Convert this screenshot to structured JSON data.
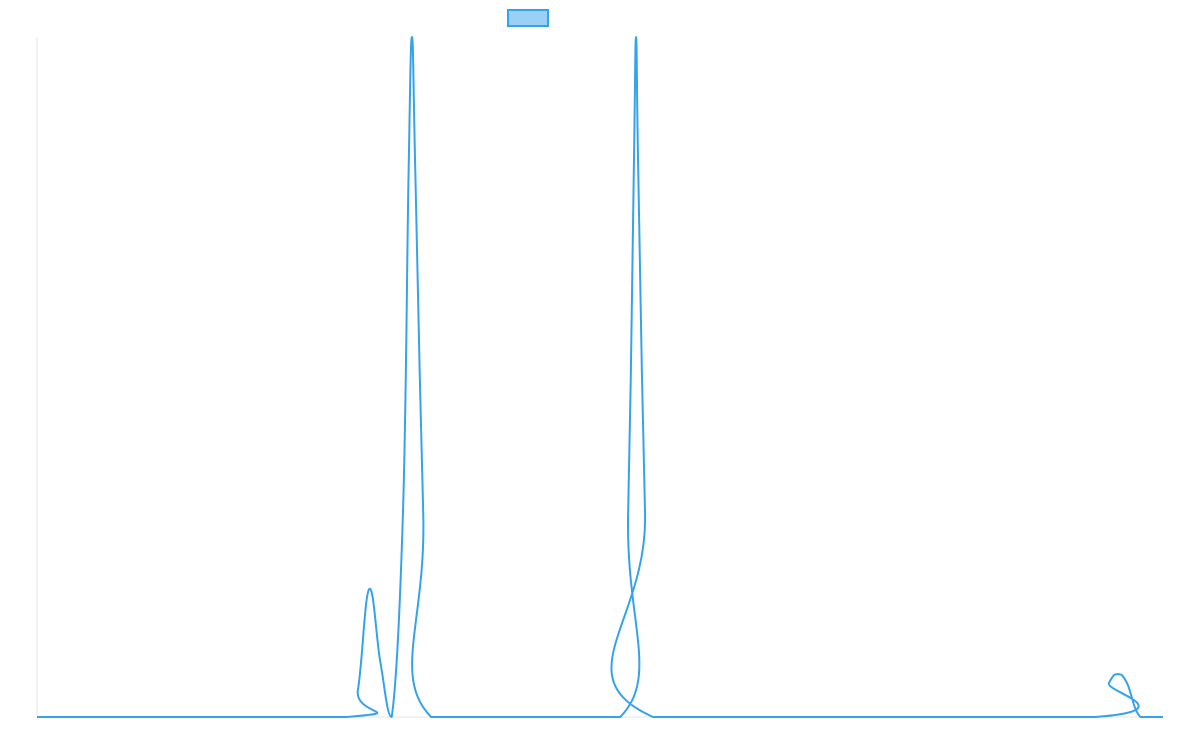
{
  "colors": {
    "series_line": "#36A2EB",
    "series_fill": "#9AD0F5",
    "axis": "#e6e6e6",
    "background": "#ffffff"
  },
  "legend": {
    "position": "top",
    "entries": [
      {
        "label": "",
        "color": "#36A2EB"
      }
    ]
  },
  "chart_data": {
    "type": "line",
    "title": "",
    "xlabel": "",
    "ylabel": "",
    "xlim": [
      0,
      100
    ],
    "ylim": [
      0,
      100
    ],
    "grid": false,
    "legend_placement": "top",
    "series": [
      {
        "name": "",
        "color": "#36A2EB",
        "points": [
          [
            0,
            0
          ],
          [
            27.5,
            0
          ],
          [
            28.5,
            4
          ],
          [
            29.5,
            18.8
          ],
          [
            30.5,
            8
          ],
          [
            31.5,
            0
          ],
          [
            32.5,
            30
          ],
          [
            33.0,
            80
          ],
          [
            33.3,
            100
          ],
          [
            33.6,
            80
          ],
          [
            34.3,
            30
          ],
          [
            35.0,
            0
          ],
          [
            51.8,
            0
          ],
          [
            52.5,
            30
          ],
          [
            53.0,
            80
          ],
          [
            53.2,
            100
          ],
          [
            53.4,
            80
          ],
          [
            54.0,
            30
          ],
          [
            54.7,
            0
          ],
          [
            94.0,
            0
          ],
          [
            95.2,
            5
          ],
          [
            96.0,
            6.3
          ],
          [
            96.8,
            5
          ],
          [
            98.0,
            0
          ],
          [
            100,
            0
          ]
        ]
      }
    ]
  }
}
